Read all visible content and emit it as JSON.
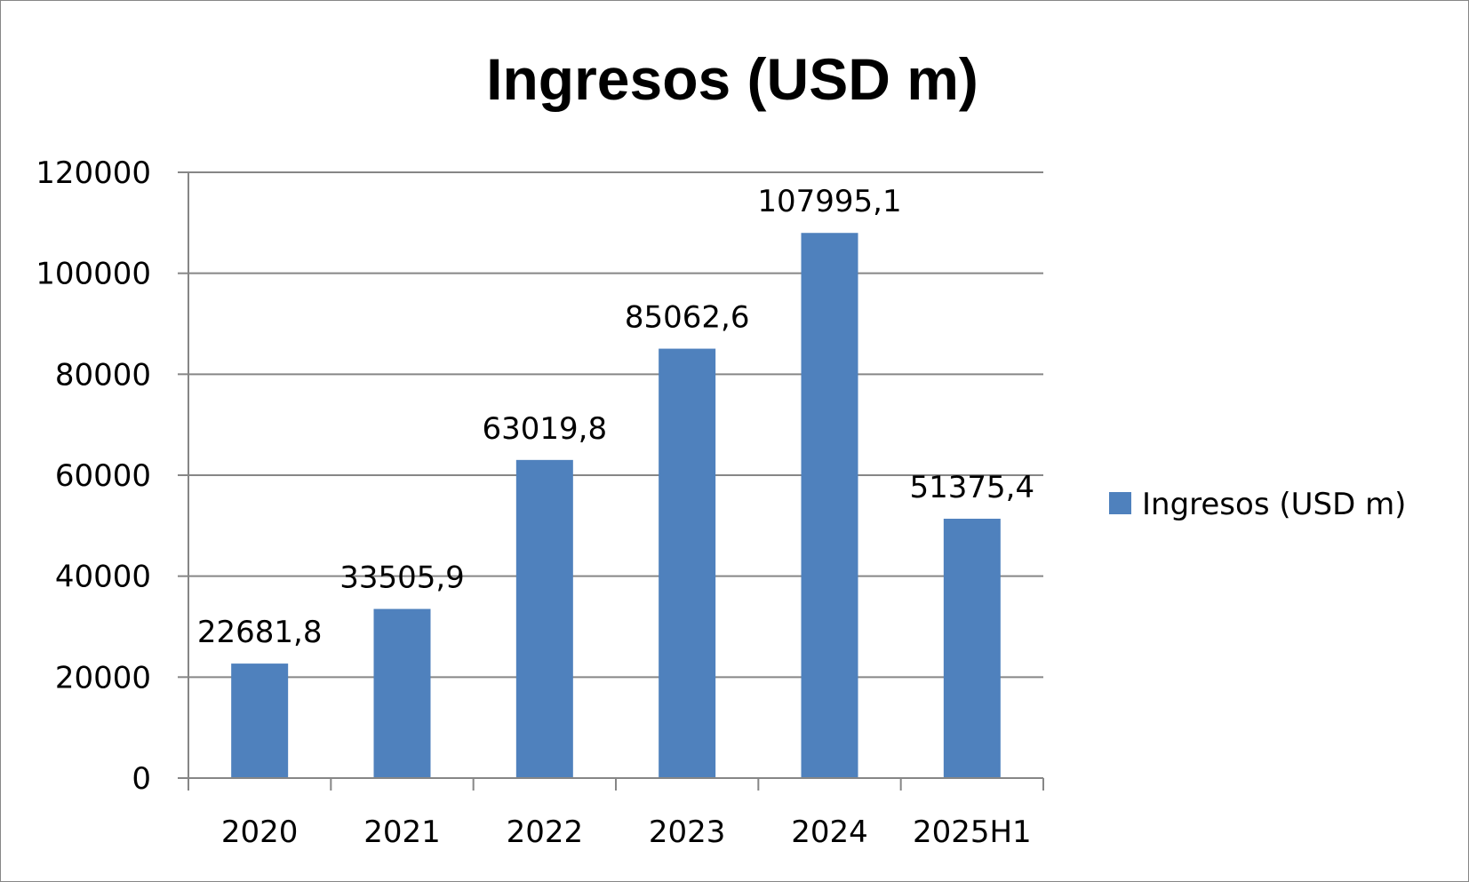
{
  "chart_data": {
    "type": "bar",
    "title": "Ingresos (USD m)",
    "categories": [
      "2020",
      "2021",
      "2022",
      "2023",
      "2024",
      "2025H1"
    ],
    "series": [
      {
        "name": "Ingresos (USD m)",
        "values": [
          22681.8,
          33505.9,
          63019.8,
          85062.6,
          107995.1,
          51375.4
        ],
        "labels": [
          "22681,8",
          "33505,9",
          "63019,8",
          "85062,6",
          "107995,1",
          "51375,4"
        ],
        "color": "#4F81BD"
      }
    ],
    "ylim": [
      0,
      120000
    ],
    "yticks": [
      0,
      20000,
      40000,
      60000,
      80000,
      100000,
      120000
    ],
    "grid": true,
    "legend": "right"
  }
}
